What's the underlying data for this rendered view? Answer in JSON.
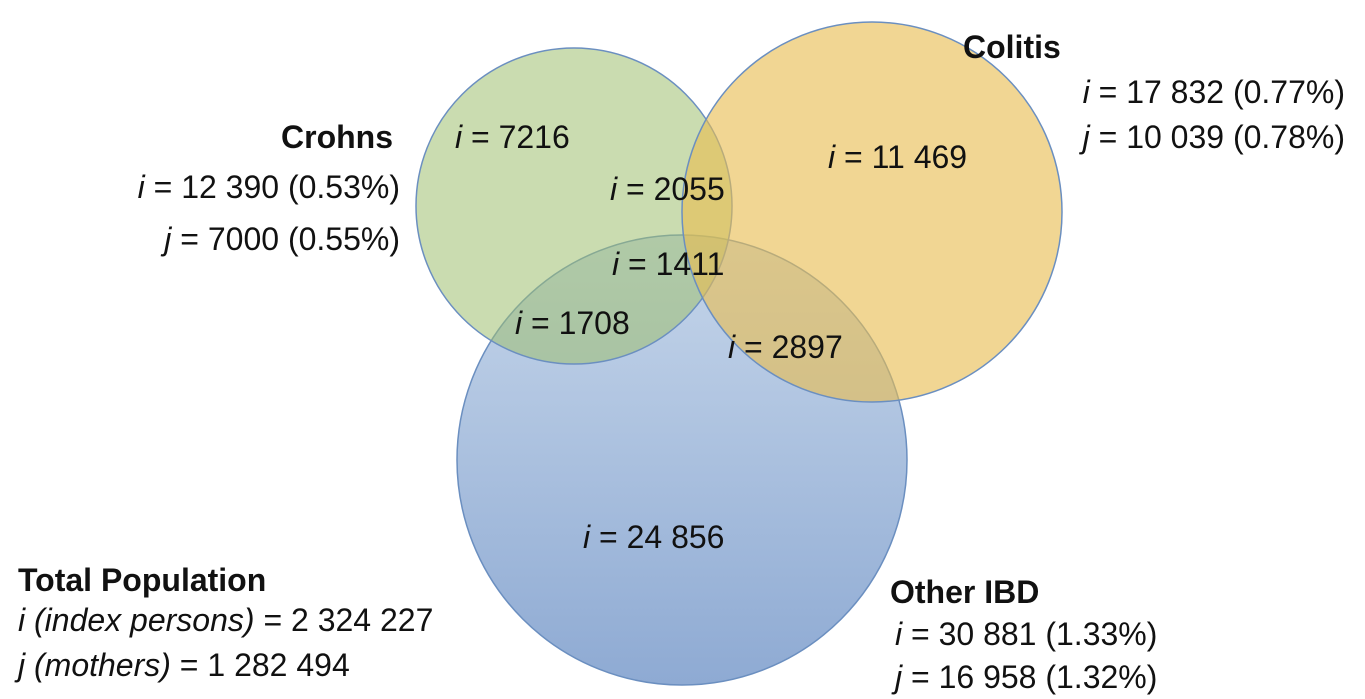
{
  "sets": [
    {
      "name": "Crohns",
      "lines": [
        {
          "var": "i",
          "text": "= 12 390 (0.53%)"
        },
        {
          "var": "j",
          "text": "= 7000 (0.55%)"
        }
      ]
    },
    {
      "name": "Colitis",
      "lines": [
        {
          "var": "i",
          "text": "= 17 832 (0.77%)"
        },
        {
          "var": "j",
          "text": "= 10 039 (0.78%)"
        }
      ]
    },
    {
      "name": "Other IBD",
      "lines": [
        {
          "var": "i",
          "text": "= 30 881 (1.33%)"
        },
        {
          "var": "j",
          "text": "= 16 958 (1.32%)"
        }
      ]
    }
  ],
  "regions": [
    {
      "var": "i",
      "text": "= 7216"
    },
    {
      "var": "i",
      "text": "= 11 469"
    },
    {
      "var": "i",
      "text": "= 2055"
    },
    {
      "var": "i",
      "text": "= 1411"
    },
    {
      "var": "i",
      "text": "= 1708"
    },
    {
      "var": "i",
      "text": "= 2897"
    },
    {
      "var": "i",
      "text": "= 24 856"
    }
  ],
  "total": {
    "title": "Total Population",
    "lines": [
      {
        "var": "i (index persons)",
        "text": "= 2 324 227"
      },
      {
        "var": "j (mothers)",
        "text": "= 1 282 494"
      }
    ]
  }
}
